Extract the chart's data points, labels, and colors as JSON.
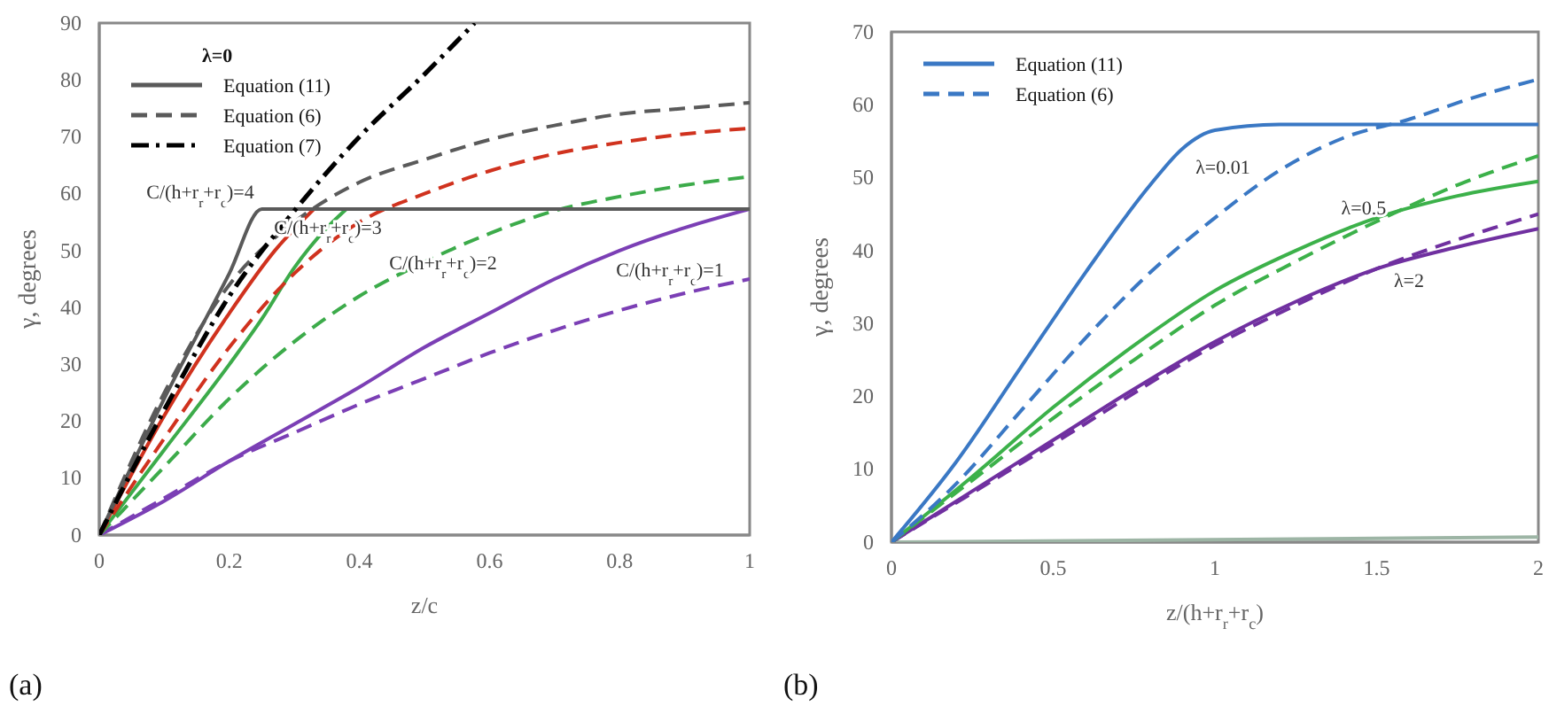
{
  "chart_data": [
    {
      "type": "line",
      "xlabel": "z/c",
      "ylabel": "γ, degrees",
      "legend_title": "λ=0",
      "legend": "top left",
      "xlim": [
        0,
        1
      ],
      "ylim": [
        0,
        90
      ],
      "xticks": [
        0,
        0.2,
        0.4,
        0.6,
        0.8,
        1
      ],
      "yticks": [
        0,
        10,
        20,
        30,
        40,
        50,
        60,
        70,
        80,
        90
      ],
      "series": [
        {
          "color": "#7b3fb5",
          "line_style": "solid",
          "x": [
            0,
            0.1,
            0.2,
            0.3,
            0.4,
            0.5,
            0.6,
            0.7,
            0.8,
            0.9,
            1
          ],
          "values": [
            0,
            6,
            13,
            19.5,
            26,
            33,
            39,
            45,
            50,
            54,
            57.3
          ]
        },
        {
          "color": "#7b3fb5",
          "line_style": "dashed",
          "x": [
            0,
            0.1,
            0.2,
            0.3,
            0.4,
            0.5,
            0.6,
            0.7,
            0.8,
            0.9,
            1
          ],
          "values": [
            0,
            6.5,
            13,
            18,
            23,
            27.5,
            32,
            36,
            39.5,
            42.5,
            45
          ]
        },
        {
          "color": "#3cab4a",
          "line_style": "solid",
          "x": [
            0,
            0.1,
            0.2,
            0.25,
            0.3,
            0.35,
            0.38
          ],
          "values": [
            0,
            15,
            30,
            38,
            47,
            54,
            57.3
          ]
        },
        {
          "color": "#3cab4a",
          "line_style": "dashed",
          "x": [
            0,
            0.1,
            0.2,
            0.3,
            0.4,
            0.5,
            0.6,
            0.7,
            0.8,
            0.9,
            1
          ],
          "values": [
            0,
            12,
            24,
            34,
            42,
            48,
            53,
            57,
            59.5,
            61.5,
            63
          ]
        },
        {
          "color": "#d0321e",
          "line_style": "solid",
          "x": [
            0,
            0.1,
            0.2,
            0.27,
            0.33
          ],
          "values": [
            0,
            21,
            39,
            50,
            57.3
          ]
        },
        {
          "color": "#d0321e",
          "line_style": "dashed",
          "x": [
            0,
            0.1,
            0.2,
            0.3,
            0.4,
            0.5,
            0.6,
            0.7,
            0.8,
            0.9,
            1
          ],
          "values": [
            0,
            17,
            33,
            46,
            55,
            60,
            64,
            67,
            69,
            70.5,
            71.5
          ]
        },
        {
          "name": "Equation (6)",
          "color": "#5a5a5a",
          "line_style": "dashed",
          "x": [
            0,
            0.1,
            0.2,
            0.3,
            0.4,
            0.5,
            0.6,
            0.7,
            0.8,
            0.9,
            1
          ],
          "values": [
            0,
            25,
            44,
            55,
            62,
            66,
            69.5,
            72,
            74,
            75,
            76
          ]
        },
        {
          "name": "Equation (11)",
          "color": "#5a5a5a",
          "line_style": "solid",
          "x": [
            0,
            0.1,
            0.2,
            0.25,
            1
          ],
          "values": [
            0,
            24,
            46,
            57.3,
            57.3
          ]
        },
        {
          "name": "Equation (7)",
          "color": "#000000",
          "line_style": "dashdot",
          "x": [
            0,
            0.1,
            0.2,
            0.3,
            0.4,
            0.5,
            0.577
          ],
          "values": [
            0,
            22,
            42,
            57,
            70,
            81,
            90
          ]
        }
      ],
      "annotations": [
        "C/(h+r$_{r}$+r$_{c}$)=4",
        "C/(h+r$_{r}$+r$_{c}$)=3",
        "C/(h+r$_{r}$+r$_{c}$)=2",
        "C/(h+r$_{r}$+r$_{c}$)=1",
        "(a)"
      ]
    },
    {
      "type": "line",
      "xlabel": "z/(h+r$_{r}$+r$_{c}$)",
      "ylabel": "γ, degrees",
      "legend": "top left",
      "xlim": [
        0,
        2
      ],
      "ylim": [
        0,
        70
      ],
      "xticks": [
        0,
        0.5,
        1,
        1.5,
        2
      ],
      "yticks": [
        0,
        10,
        20,
        30,
        40,
        50,
        60,
        70
      ],
      "series": [
        {
          "color": "#9db5a5",
          "line_style": "solid",
          "x": [
            0,
            2
          ],
          "values": [
            0,
            0.7
          ]
        },
        {
          "color": "#7030a0",
          "line_style": "solid",
          "x": [
            0,
            0.25,
            0.5,
            0.75,
            1,
            1.25,
            1.5,
            1.75,
            2
          ],
          "values": [
            0,
            7,
            14,
            21,
            27.5,
            33,
            37.5,
            40.5,
            43
          ]
        },
        {
          "color": "#7030a0",
          "line_style": "dashed",
          "x": [
            0,
            0.5,
            1,
            1.25,
            1.5,
            1.75,
            2
          ],
          "values": [
            0,
            13.5,
            27,
            32.5,
            37.5,
            41.5,
            45
          ]
        },
        {
          "color": "#3cb14a",
          "line_style": "solid",
          "x": [
            0,
            0.25,
            0.5,
            0.75,
            1,
            1.25,
            1.5,
            1.75,
            2
          ],
          "values": [
            0,
            9,
            18.5,
            27,
            34.5,
            40,
            44.5,
            47.5,
            49.5
          ]
        },
        {
          "color": "#3cb14a",
          "line_style": "dashed",
          "x": [
            0,
            0.25,
            0.5,
            0.75,
            1,
            1.25,
            1.5,
            1.75,
            2
          ],
          "values": [
            0,
            8.5,
            17,
            25,
            32.5,
            38.5,
            44,
            49,
            53
          ]
        },
        {
          "name": "Equation (11)",
          "color": "#3a78c4",
          "line_style": "solid",
          "x": [
            0,
            0.2,
            0.4,
            0.6,
            0.8,
            0.9,
            1,
            1.2,
            2
          ],
          "values": [
            0,
            11,
            24,
            37,
            49,
            54,
            56.5,
            57.3,
            57.3
          ]
        },
        {
          "name": "Equation (6)",
          "color": "#3a78c4",
          "line_style": "dashed",
          "x": [
            0,
            0.2,
            0.4,
            0.6,
            0.8,
            1,
            1.2,
            1.4,
            1.6,
            1.8,
            2
          ],
          "values": [
            0,
            8,
            18,
            28,
            37,
            44.5,
            51,
            55.5,
            58,
            61,
            63.5
          ]
        }
      ],
      "annotations": [
        "λ=0.01",
        {
          "text": "λ=0.5",
          "x": 1.46,
          "y": 45
        },
        "λ=2",
        "(b)"
      ]
    }
  ]
}
